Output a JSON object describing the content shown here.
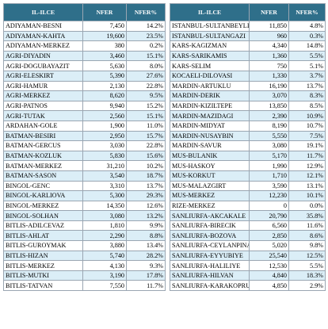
{
  "headers": {
    "col1": "IL-ILCE",
    "col2": "NFER",
    "col3": "NFER%"
  },
  "left_rows": [
    {
      "name": "ADIYAMAN-BESNI",
      "nfer": "7,450",
      "pct": "14.2%"
    },
    {
      "name": "ADIYAMAN-KAHTA",
      "nfer": "19,600",
      "pct": "23.5%"
    },
    {
      "name": "ADIYAMAN-MERKEZ",
      "nfer": "380",
      "pct": "0.2%"
    },
    {
      "name": "AGRI-DIYADIN",
      "nfer": "3,460",
      "pct": "15.1%"
    },
    {
      "name": "AGRI-DOGUBAYAZIT",
      "nfer": "5,630",
      "pct": "8.0%"
    },
    {
      "name": "AGRI-ELESKIRT",
      "nfer": "5,390",
      "pct": "27.6%"
    },
    {
      "name": "AGRI-HAMUR",
      "nfer": "2,130",
      "pct": "22.8%"
    },
    {
      "name": "AGRI-MERKEZ",
      "nfer": "8,620",
      "pct": "9.5%"
    },
    {
      "name": "AGRI-PATNOS",
      "nfer": "9,940",
      "pct": "15.2%"
    },
    {
      "name": "AGRI-TUTAK",
      "nfer": "2,560",
      "pct": "15.1%"
    },
    {
      "name": "ARDAHAN-GOLE",
      "nfer": "1,900",
      "pct": "11.0%"
    },
    {
      "name": "BATMAN-BESIRI",
      "nfer": "2,950",
      "pct": "15.7%"
    },
    {
      "name": "BATMAN-GERCUS",
      "nfer": "3,030",
      "pct": "22.8%"
    },
    {
      "name": "BATMAN-KOZLUK",
      "nfer": "5,830",
      "pct": "15.6%"
    },
    {
      "name": "BATMAN-MERKEZ",
      "nfer": "31,210",
      "pct": "10.2%"
    },
    {
      "name": "BATMAN-SASON",
      "nfer": "3,540",
      "pct": "18.7%"
    },
    {
      "name": "BINGOL-GENC",
      "nfer": "3,310",
      "pct": "13.7%"
    },
    {
      "name": "BINGOL-KARLIOVA",
      "nfer": "5,300",
      "pct": "29.3%"
    },
    {
      "name": "BINGOL-MERKEZ",
      "nfer": "14,350",
      "pct": "12.6%"
    },
    {
      "name": "BINGOL-SOLHAN",
      "nfer": "3,080",
      "pct": "13.2%"
    },
    {
      "name": "BITLIS-ADILCEVAZ",
      "nfer": "1,810",
      "pct": "9.9%"
    },
    {
      "name": "BITLIS-AHLAT",
      "nfer": "2,290",
      "pct": "8.8%"
    },
    {
      "name": "BITLIS-GUROYMAK",
      "nfer": "3,880",
      "pct": "13.4%"
    },
    {
      "name": "BITLIS-HIZAN",
      "nfer": "5,740",
      "pct": "28.2%"
    },
    {
      "name": "BITLIS-MERKEZ",
      "nfer": "4,130",
      "pct": "9.3%"
    },
    {
      "name": "BITLIS-MUTKI",
      "nfer": "3,190",
      "pct": "17.8%"
    },
    {
      "name": "BITLIS-TATVAN",
      "nfer": "7,550",
      "pct": "11.7%"
    }
  ],
  "right_rows": [
    {
      "name": "ISTANBUL-SULTANBEYLI",
      "nfer": "11,850",
      "pct": "4.8%"
    },
    {
      "name": "ISTANBUL-SULTANGAZI",
      "nfer": "960",
      "pct": "0.3%"
    },
    {
      "name": "KARS-KAGIZMAN",
      "nfer": "4,340",
      "pct": "14.8%"
    },
    {
      "name": "KARS-SARIKAMIS",
      "nfer": "1,360",
      "pct": "5.5%"
    },
    {
      "name": "KARS-SELIM",
      "nfer": "750",
      "pct": "5.1%"
    },
    {
      "name": "KOCAELI-DILOVASI",
      "nfer": "1,330",
      "pct": "3.7%"
    },
    {
      "name": "MARDIN-ARTUKLU",
      "nfer": "16,190",
      "pct": "13.7%"
    },
    {
      "name": "MARDIN-DERIK",
      "nfer": "3,070",
      "pct": "8.3%"
    },
    {
      "name": "MARDIN-KIZILTEPE",
      "nfer": "13,850",
      "pct": "8.5%"
    },
    {
      "name": "MARDIN-MAZIDAGI",
      "nfer": "2,390",
      "pct": "10.9%"
    },
    {
      "name": "MARDIN-MIDYAT",
      "nfer": "8,190",
      "pct": "10.7%"
    },
    {
      "name": "MARDIN-NUSAYBIN",
      "nfer": "5,550",
      "pct": "7.5%"
    },
    {
      "name": "MARDIN-SAVUR",
      "nfer": "3,080",
      "pct": "19.1%"
    },
    {
      "name": "MUS-BULANIK",
      "nfer": "5,170",
      "pct": "11.7%"
    },
    {
      "name": "MUS-HASKOY",
      "nfer": "1,990",
      "pct": "12.9%"
    },
    {
      "name": "MUS-KORKUT",
      "nfer": "1,710",
      "pct": "12.1%"
    },
    {
      "name": "MUS-MALAZGIRT",
      "nfer": "3,590",
      "pct": "13.1%"
    },
    {
      "name": "MUS-MERKEZ",
      "nfer": "12,230",
      "pct": "10.1%"
    },
    {
      "name": "RIZE-MERKEZ",
      "nfer": "0",
      "pct": "0.0%"
    },
    {
      "name": "SANLIURFA-AKCAKALE",
      "nfer": "20,790",
      "pct": "35.8%"
    },
    {
      "name": "SANLIURFA-BIRECIK",
      "nfer": "6,560",
      "pct": "11.6%"
    },
    {
      "name": "SANLIURFA-BOZOVA",
      "nfer": "2,850",
      "pct": "8.6%"
    },
    {
      "name": "SANLIURFA-CEYLANPINAR",
      "nfer": "5,020",
      "pct": "9.8%"
    },
    {
      "name": "SANLIURFA-EYYUBIYE",
      "nfer": "25,540",
      "pct": "12.5%"
    },
    {
      "name": "SANLIURFA-HALILIYE",
      "nfer": "12,530",
      "pct": "5.5%"
    },
    {
      "name": "SANLIURFA-HILVAN",
      "nfer": "4,840",
      "pct": "18.3%"
    },
    {
      "name": "SANLIURFA-KARAKOPRU",
      "nfer": "4,850",
      "pct": "2.9%"
    }
  ]
}
